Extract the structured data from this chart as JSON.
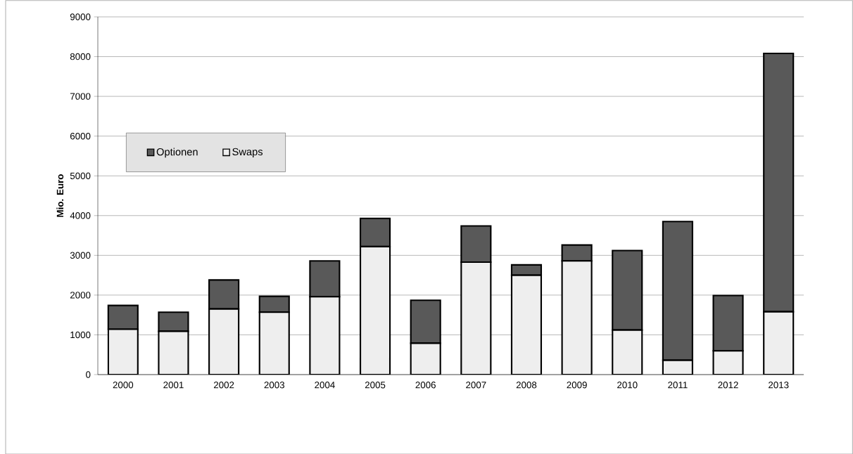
{
  "chart_data": {
    "type": "bar",
    "stacked": true,
    "ylabel": "Mio. Euro",
    "categories": [
      "2000",
      "2001",
      "2002",
      "2003",
      "2004",
      "2005",
      "2006",
      "2007",
      "2008",
      "2009",
      "2010",
      "2011",
      "2012",
      "2013"
    ],
    "series": [
      {
        "name": "Swaps",
        "color": "#eeeeee",
        "values": [
          1140,
          1090,
          1650,
          1570,
          1960,
          3220,
          790,
          2830,
          2500,
          2860,
          1120,
          360,
          600,
          1580
        ]
      },
      {
        "name": "Optionen",
        "color": "#595959",
        "values": [
          600,
          480,
          730,
          400,
          900,
          710,
          1080,
          910,
          260,
          400,
          2000,
          3490,
          1390,
          6500
        ]
      }
    ],
    "ylim": [
      0,
      9000
    ],
    "yticks": [
      0,
      1000,
      2000,
      3000,
      4000,
      5000,
      6000,
      7000,
      8000,
      9000
    ],
    "grid": "y",
    "legend": "top left"
  }
}
